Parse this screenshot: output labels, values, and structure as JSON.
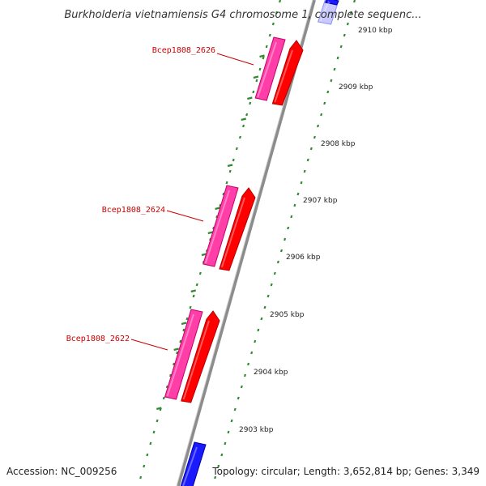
{
  "map": {
    "title": "Burkholderia vietnamiensis G4 chromosome 1, complete sequenc...",
    "accession": "Accession: NC_009256",
    "summary": "Topology: circular; Length: 3,652,814 bp; Genes: 3,349"
  },
  "colors": {
    "backbone": "#8c8c8c",
    "tick": "#2e8b2e",
    "gene_forward": "#ff0000",
    "gene_forward_dark": "#b30000",
    "cds_pink": "#ff3ea8",
    "cds_pink_dark": "#c2006b",
    "other_gene": "#1a1aff",
    "label_red": "#cc0000"
  },
  "icons": {
    "gene_arrow": "gene-arrow-icon"
  },
  "kbp_ticks": [
    "2910 kbp",
    "2909 kbp",
    "2908 kbp",
    "2907 kbp",
    "2906 kbp",
    "2905 kbp",
    "2904 kbp",
    "2903 kbp"
  ],
  "genes": [
    {
      "label": "Bcep1808_2626"
    },
    {
      "label": "Bcep1808_2624"
    },
    {
      "label": "Bcep1808_2622"
    }
  ]
}
